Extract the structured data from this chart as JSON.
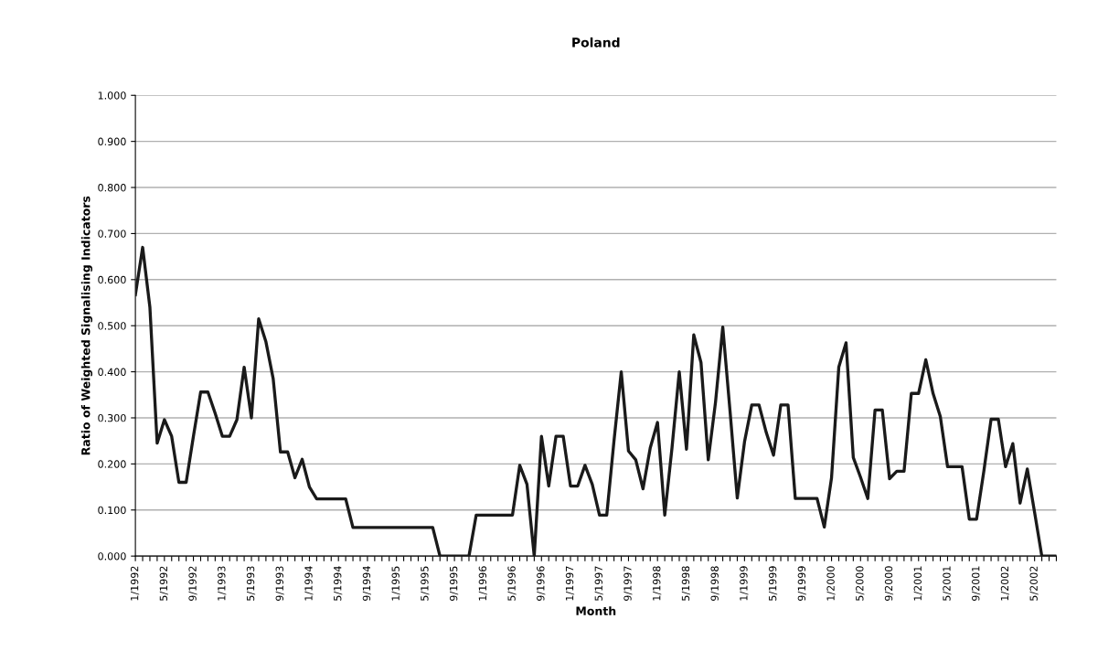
{
  "chart_data": {
    "type": "line",
    "title": "Poland",
    "xlabel": "Month",
    "ylabel": "Ratio of Weighted Signalising Indicators",
    "categories": [
      "1/1992",
      null,
      null,
      null,
      "5/1992",
      null,
      null,
      null,
      "9/1992",
      null,
      null,
      null,
      "1/1993",
      null,
      null,
      null,
      "5/1993",
      null,
      null,
      null,
      "9/1993",
      null,
      null,
      null,
      "1/1994",
      null,
      null,
      null,
      "5/1994",
      null,
      null,
      null,
      "9/1994",
      null,
      null,
      null,
      "1/1995",
      null,
      null,
      null,
      "5/1995",
      null,
      null,
      null,
      "9/1995",
      null,
      null,
      null,
      "1/1996",
      null,
      null,
      null,
      "5/1996",
      null,
      null,
      null,
      "9/1996",
      null,
      null,
      null,
      "1/1997",
      null,
      null,
      null,
      "5/1997",
      null,
      null,
      null,
      "9/1997",
      null,
      null,
      null,
      "1/1998",
      null,
      null,
      null,
      "5/1998",
      null,
      null,
      null,
      "9/1998",
      null,
      null,
      null,
      "1/1999",
      null,
      null,
      null,
      "5/1999",
      null,
      null,
      null,
      "9/1999",
      null,
      null,
      null,
      "1/2000",
      null,
      null,
      null,
      "5/2000",
      null,
      null,
      null,
      "9/2000",
      null,
      null,
      null,
      "1/2001",
      null,
      null,
      null,
      "5/2001",
      null,
      null,
      null,
      "9/2001",
      null,
      null,
      null,
      "1/2002",
      null,
      null,
      null,
      "5/2002",
      null,
      null,
      null
    ],
    "series": [
      {
        "color": "#1a1a1a",
        "values": [
          0.567,
          0.67,
          0.54,
          0.245,
          0.296,
          0.26,
          0.16,
          0.16,
          0.26,
          0.356,
          0.356,
          0.31,
          0.26,
          0.26,
          0.296,
          0.41,
          0.3,
          0.515,
          0.465,
          0.385,
          0.226,
          0.226,
          0.17,
          0.21,
          0.15,
          0.124,
          0.124,
          0.124,
          0.124,
          0.124,
          0.062,
          0.062,
          0.062,
          0.062,
          0.062,
          0.062,
          0.062,
          0.062,
          0.062,
          0.062,
          0.062,
          0.062,
          0,
          0,
          0,
          0,
          0,
          0.089,
          0.089,
          0.089,
          0.089,
          0.089,
          0.089,
          0.197,
          0.156,
          0,
          0.26,
          0.152,
          0.26,
          0.26,
          0.152,
          0.152,
          0.197,
          0.156,
          0.089,
          0.089,
          0.25,
          0.4,
          0.228,
          0.209,
          0.146,
          0.235,
          0.29,
          0.089,
          0.235,
          0.4,
          0.232,
          0.48,
          0.42,
          0.209,
          0.334,
          0.497,
          0.315,
          0.126,
          0.248,
          0.328,
          0.328,
          0.268,
          0.219,
          0.328,
          0.328,
          0.125,
          0.125,
          0.125,
          0.125,
          0.063,
          0.17,
          0.41,
          0.463,
          0.214,
          0.171,
          0.125,
          0.317,
          0.317,
          0.168,
          0.184,
          0.184,
          0.353,
          0.353,
          0.426,
          0.353,
          0.303,
          0.194,
          0.194,
          0.194,
          0.08,
          0.08,
          0.184,
          0.297,
          0.297,
          0.194,
          0.244,
          0.115,
          0.189,
          0.095,
          0,
          0,
          0
        ]
      }
    ],
    "ylim": [
      0,
      1
    ],
    "yticks": [
      {
        "value": 0,
        "label": "0.000"
      },
      {
        "value": 0.1,
        "label": "0.100"
      },
      {
        "value": 0.2,
        "label": "0.200"
      },
      {
        "value": 0.3,
        "label": "0.300"
      },
      {
        "value": 0.4,
        "label": "0.400"
      },
      {
        "value": 0.5,
        "label": "0.500"
      },
      {
        "value": 0.6,
        "label": "0.600"
      },
      {
        "value": 0.7,
        "label": "0.700"
      },
      {
        "value": 0.8,
        "label": "0.800"
      },
      {
        "value": 0.9,
        "label": "0.900"
      },
      {
        "value": 1,
        "label": "1.000"
      }
    ],
    "grid": "y",
    "marker": "none",
    "line_style": "solid"
  }
}
